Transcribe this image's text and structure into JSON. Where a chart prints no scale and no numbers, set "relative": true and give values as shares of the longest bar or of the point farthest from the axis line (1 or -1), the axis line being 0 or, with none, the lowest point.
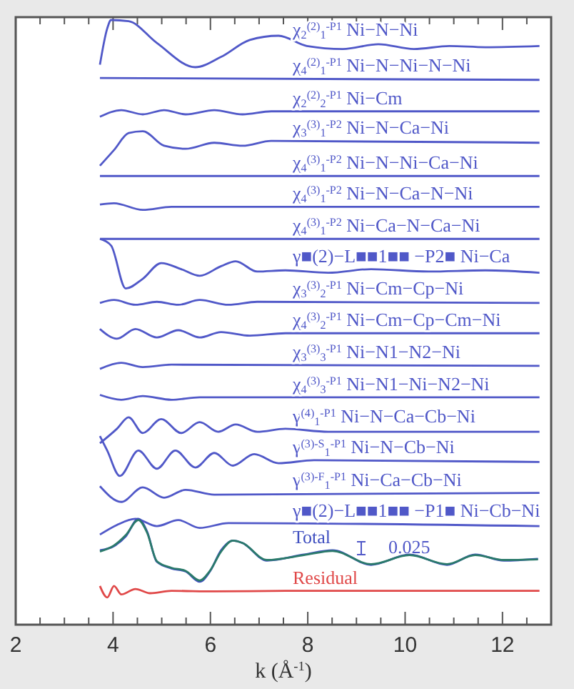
{
  "chart_data": {
    "type": "line",
    "relative": true,
    "xlabel": "k (Å$^{-1}$)",
    "xlim": [
      2,
      13
    ],
    "xticks": [
      2,
      {
        "value": 2.5,
        "label": null
      },
      {
        "value": 3,
        "label": null
      },
      {
        "value": 3.5,
        "label": null
      },
      4,
      {
        "value": 4.5,
        "label": null
      },
      {
        "value": 5,
        "label": null
      },
      {
        "value": 5.5,
        "label": null
      },
      6,
      {
        "value": 6.5,
        "label": null
      },
      {
        "value": 7,
        "label": null
      },
      {
        "value": 7.5,
        "label": null
      },
      8,
      {
        "value": 8.5,
        "label": null
      },
      {
        "value": 9,
        "label": null
      },
      {
        "value": 9.5,
        "label": null
      },
      10,
      {
        "value": 10.5,
        "label": null
      },
      {
        "value": 11,
        "label": null
      },
      {
        "value": 11.5,
        "label": null
      },
      12,
      {
        "value": 12.5,
        "label": null
      },
      {
        "value": 13,
        "label": null
      }
    ],
    "annotations": [
      "0.025"
    ],
    "series": [
      {
        "name": "χ$_{2}$$^{(2)}$$_{1}$$^{-P1}$ Ni−N−Ni",
        "color": "#5058c8",
        "x": [
          3.73,
          3.88,
          3.96,
          4.32,
          4.9,
          5.69,
          6.22,
          6.81,
          7.4,
          7.98,
          8.72,
          9.45,
          10.18,
          10.91,
          11.65,
          12.76
        ],
        "values": [
          0.926,
          0.986,
          1.0,
          0.998,
          0.962,
          0.922,
          0.939,
          0.967,
          0.974,
          0.957,
          0.952,
          0.96,
          0.952,
          0.957,
          0.955,
          0.957
        ]
      },
      {
        "name": "χ$_{4}$$^{(2)}$$_{1}$$^{-P1}$ Ni−N−Ni−N−Ni",
        "color": "#5058c8",
        "x": [
          3.73,
          12.76
        ],
        "values": [
          0.904,
          0.901
        ]
      },
      {
        "name": "χ$_{2}$$^{(2)}$$_{2}$$^{-P1}$ Ni−Cm",
        "color": "#5058c8",
        "x": [
          3.73,
          4.17,
          4.61,
          5.05,
          5.49,
          6.08,
          6.66,
          7.25,
          12.76
        ],
        "values": [
          0.84,
          0.851,
          0.844,
          0.851,
          0.844,
          0.851,
          0.844,
          0.849,
          0.849
        ]
      },
      {
        "name": "χ$_{3}$$^{(3)}$$_{1}$$^{-P2}$ Ni−N−Ca−Ni",
        "color": "#5058c8",
        "x": [
          3.73,
          4.02,
          4.32,
          4.61,
          5.05,
          5.49,
          6.08,
          6.66,
          7.25,
          12.76
        ],
        "values": [
          0.759,
          0.785,
          0.813,
          0.816,
          0.792,
          0.787,
          0.797,
          0.792,
          0.8,
          0.797
        ]
      },
      {
        "name": "χ$_{4}$$^{(3)}$$_{1}$$^{-P2}$ Ni−N−Ni−Ca−Ni",
        "color": "#5058c8",
        "x": [
          3.73,
          12.76
        ],
        "values": [
          0.742,
          0.742
        ]
      },
      {
        "name": "χ$_{4}$$^{(3)}$$_{1}$$^{-P2}$ Ni−N−Ca−N−Ni",
        "color": "#5058c8",
        "x": [
          3.73,
          4.02,
          4.61,
          5.2,
          12.76
        ],
        "values": [
          0.695,
          0.697,
          0.686,
          0.691,
          0.691
        ]
      },
      {
        "name": "χ$_{4}$$^{(3)}$$_{1}$$^{-P2}$ Ni−Ca−N−Ca−Ni",
        "color": "#5058c8",
        "x": [
          3.73,
          12.76
        ],
        "values": [
          0.638,
          0.638
        ]
      },
      {
        "name": "γ■(2)−L■■1■■ −P2■ Ni−Ca",
        "color": "#5058c8",
        "x": [
          3.73,
          3.96,
          4.26,
          4.61,
          4.99,
          5.4,
          5.78,
          6.22,
          6.52,
          6.96,
          7.54,
          8.42,
          9.3,
          10.48,
          11.65,
          12.76
        ],
        "values": [
          0.638,
          0.627,
          0.556,
          0.572,
          0.598,
          0.588,
          0.577,
          0.593,
          0.601,
          0.584,
          0.586,
          0.582,
          0.588,
          0.584,
          0.586,
          0.582
        ]
      },
      {
        "name": "χ$_{3}$$^{(3)}$$_{2}$$^{-P1}$ Ni−Cm−Cp−Ni",
        "color": "#5058c8",
        "x": [
          3.73,
          4.02,
          4.46,
          4.9,
          5.34,
          5.78,
          6.37,
          6.96,
          12.76
        ],
        "values": [
          0.532,
          0.537,
          0.529,
          0.534,
          0.529,
          0.537,
          0.529,
          0.534,
          0.532
        ]
      },
      {
        "name": "χ$_{4}$$^{(3)}$$_{2}$$^{-P1}$ Ni−Cm−Cp−Cm−Ni",
        "color": "#5058c8",
        "x": [
          3.73,
          4.08,
          4.46,
          4.9,
          5.34,
          5.78,
          6.22,
          6.81,
          7.54,
          12.76
        ],
        "values": [
          0.489,
          0.473,
          0.489,
          0.475,
          0.487,
          0.475,
          0.484,
          0.478,
          0.482,
          0.482
        ]
      },
      {
        "name": "χ$_{3}$$^{(3)}$$_{3}$$^{-P1}$ Ni−N1−N2−Ni",
        "color": "#5058c8",
        "x": [
          3.73,
          4.17,
          4.61,
          5.2,
          12.76
        ],
        "values": [
          0.423,
          0.433,
          0.426,
          0.43,
          0.428
        ]
      },
      {
        "name": "χ$_{4}$$^{(3)}$$_{3}$$^{-P1}$ Ni−N1−Ni−N2−Ni",
        "color": "#5058c8",
        "x": [
          3.73,
          4.17,
          4.61,
          5.2,
          5.78,
          12.76
        ],
        "values": [
          0.38,
          0.372,
          0.378,
          0.372,
          0.376,
          0.376
        ]
      },
      {
        "name": "γ$^{(4)}$$_{1}$$^{-P1}$ Ni−N−Ca−Cb−Ni",
        "color": "#5058c8",
        "x": [
          3.73,
          4.08,
          4.32,
          4.61,
          4.99,
          5.4,
          5.78,
          6.16,
          6.52,
          6.96,
          7.54,
          8.42,
          12.76
        ],
        "values": [
          0.3,
          0.324,
          0.343,
          0.317,
          0.34,
          0.317,
          0.335,
          0.319,
          0.331,
          0.319,
          0.324,
          0.319,
          0.319
        ]
      },
      {
        "name": "γ$^{(3)-S}$$_{1}$$^{-P1}$ Ni−N−Cb−Ni",
        "color": "#5058c8",
        "x": [
          3.73,
          3.88,
          4.14,
          4.52,
          4.9,
          5.28,
          5.69,
          6.08,
          6.46,
          6.9,
          7.4,
          8.13,
          12.76
        ],
        "values": [
          0.312,
          0.288,
          0.246,
          0.288,
          0.258,
          0.288,
          0.26,
          0.284,
          0.263,
          0.282,
          0.267,
          0.272,
          0.269
        ]
      },
      {
        "name": "γ$^{(3)-F}$$_{1}$$^{-P1}$ Ni−Ca−Cb−Ni",
        "color": "#5058c8",
        "x": [
          3.73,
          4.17,
          4.61,
          5.05,
          5.49,
          6.08,
          12.76
        ],
        "values": [
          0.229,
          0.203,
          0.227,
          0.21,
          0.223,
          0.215,
          0.218
        ]
      },
      {
        "name": "γ■(2)−L■■1■■ −P1■ Ni−Cb−Ni",
        "color": "#5058c8",
        "x": [
          3.73,
          4.08,
          4.46,
          4.9,
          5.34,
          5.78,
          6.37,
          12.76
        ],
        "values": [
          0.149,
          0.165,
          0.175,
          0.163,
          0.173,
          0.16,
          0.168,
          0.163
        ]
      },
      {
        "name": "Total",
        "color": "#4050c0",
        "x": [
          3.73,
          4.02,
          4.26,
          4.52,
          4.7,
          4.9,
          5.2,
          5.49,
          5.78,
          5.99,
          6.22,
          6.46,
          6.66,
          7.16,
          7.92,
          8.51,
          9.3,
          10.09,
          10.86,
          11.44,
          12.03,
          12.73
        ],
        "values": [
          0.123,
          0.13,
          0.146,
          0.175,
          0.154,
          0.104,
          0.093,
          0.088,
          0.071,
          0.088,
          0.123,
          0.139,
          0.135,
          0.106,
          0.116,
          0.123,
          0.099,
          0.116,
          0.099,
          0.116,
          0.106,
          0.109
        ]
      },
      {
        "color": "#2a7a6a",
        "x": [
          3.73,
          4.02,
          4.26,
          4.52,
          4.7,
          4.9,
          5.2,
          5.49,
          5.78,
          5.99,
          6.22,
          6.46,
          6.66,
          7.16,
          7.92,
          8.51,
          9.3,
          10.09,
          10.86,
          11.44,
          12.03,
          12.73
        ],
        "values": [
          0.121,
          0.131,
          0.148,
          0.173,
          0.152,
          0.105,
          0.094,
          0.089,
          0.073,
          0.089,
          0.121,
          0.139,
          0.135,
          0.107,
          0.115,
          0.122,
          0.1,
          0.115,
          0.1,
          0.115,
          0.107,
          0.108
        ]
      },
      {
        "name": "Residual",
        "color": "#e04848",
        "x": [
          3.73,
          3.88,
          4.02,
          4.17,
          4.46,
          4.76,
          5.2,
          6.08,
          7.54,
          12.76
        ],
        "values": [
          0.064,
          0.045,
          0.064,
          0.05,
          0.059,
          0.052,
          0.056,
          0.055,
          0.056,
          0.056
        ]
      }
    ]
  }
}
